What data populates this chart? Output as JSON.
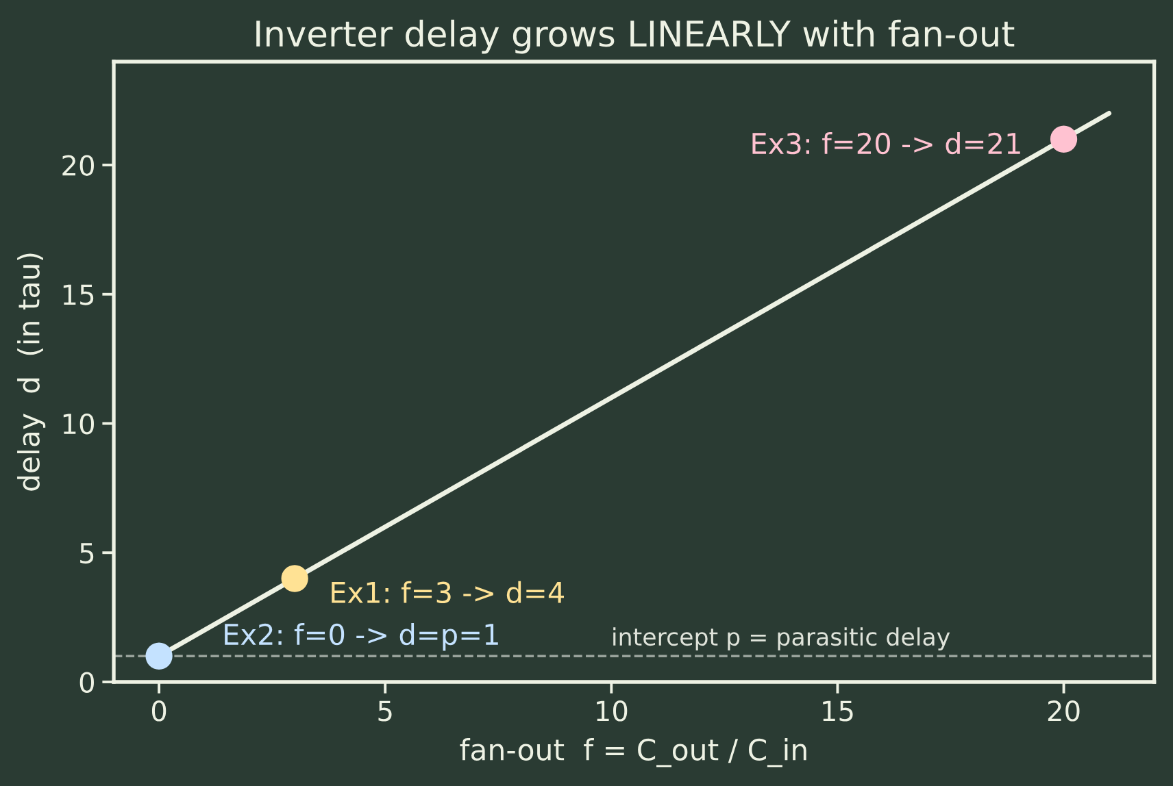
{
  "chart_data": {
    "type": "line",
    "title": "Inverter delay grows LINEARLY with fan-out",
    "xlabel": "fan-out  f = C_out / C_in",
    "ylabel": "delay  d  (in tau)",
    "series": [
      {
        "x": [
          0,
          21
        ],
        "values": [
          1,
          22
        ],
        "color": "#eef2e4",
        "line_style": "solid"
      },
      {
        "type": "scatter",
        "x": [
          0,
          3,
          20
        ],
        "values": [
          1,
          4,
          21
        ],
        "colors": [
          "#c4e2ff",
          "#ffe294",
          "#ffc2d1"
        ],
        "marker": "circle"
      }
    ],
    "annotations": [
      {
        "text": "Ex1: f=3 -> d=4",
        "x": 3,
        "y": 4
      },
      {
        "text": "Ex2: f=0 -> d=p=1",
        "x": 0,
        "y": 1
      },
      {
        "text": "Ex3: f=20 -> d=21",
        "x": 20,
        "y": 21
      }
    ],
    "ref_lines": [
      {
        "axis": "y",
        "value": 1,
        "label": "intercept p = parasitic delay",
        "color": "#9aa39c",
        "line_style": "dashed"
      }
    ],
    "xlim": [
      -1,
      22
    ],
    "ylim": [
      0,
      24
    ],
    "xticks": [
      0,
      5,
      10,
      15,
      20
    ],
    "yticks": [
      0,
      5,
      10,
      15,
      20
    ],
    "grid": false,
    "legend": false
  }
}
